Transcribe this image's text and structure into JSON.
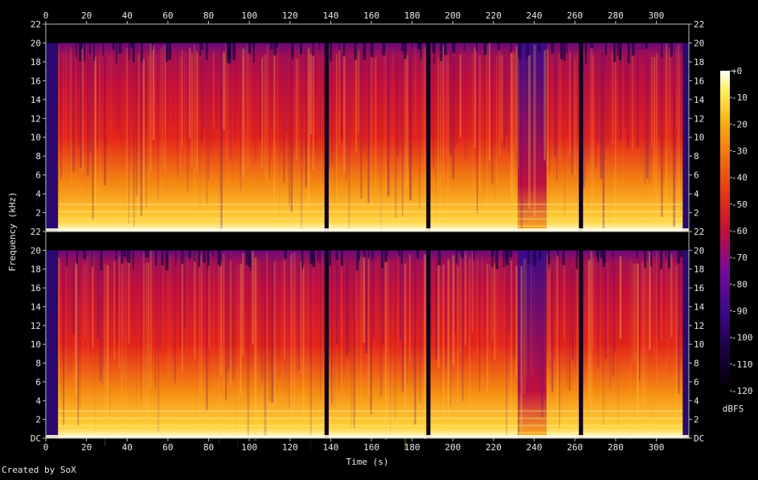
{
  "chart_data": {
    "type": "heatmap",
    "title": "",
    "xlabel": "Time (s)",
    "ylabel": "Frequency (kHz)",
    "xlim": [
      0,
      316
    ],
    "x_ticks": [
      "0",
      "20",
      "40",
      "60",
      "80",
      "100",
      "120",
      "140",
      "160",
      "180",
      "200",
      "220",
      "240",
      "260",
      "280",
      "300"
    ],
    "channels": [
      {
        "y_ticks": [
          "22",
          "20",
          "18",
          "16",
          "14",
          "12",
          "10",
          "8",
          "6",
          "4",
          "2"
        ]
      },
      {
        "y_ticks": [
          "22",
          "20",
          "18",
          "16",
          "14",
          "12",
          "10",
          "8",
          "6",
          "4",
          "2",
          "DC"
        ]
      }
    ],
    "colorbar": {
      "label": "dBFS",
      "range": [
        -120,
        0
      ],
      "ticks": [
        "+0",
        "-10",
        "-20",
        "-30",
        "-40",
        "-50",
        "-60",
        "-70",
        "-80",
        "-90",
        "-100",
        "-110",
        "-120"
      ]
    },
    "segments": [
      {
        "start": 0,
        "end": 6,
        "level": 0.15
      },
      {
        "start": 6,
        "end": 137,
        "level": 0.75
      },
      {
        "start": 137,
        "end": 139,
        "level": 0.05
      },
      {
        "start": 139,
        "end": 187,
        "level": 0.78
      },
      {
        "start": 187,
        "end": 189,
        "level": 0.05
      },
      {
        "start": 189,
        "end": 232,
        "level": 0.72
      },
      {
        "start": 232,
        "end": 246,
        "level": 0.45
      },
      {
        "start": 246,
        "end": 262,
        "level": 0.68
      },
      {
        "start": 262,
        "end": 264,
        "level": 0.08
      },
      {
        "start": 264,
        "end": 313,
        "level": 0.74
      },
      {
        "start": 313,
        "end": 316,
        "level": 0.1
      }
    ],
    "footer": "Created by SoX",
    "palette": [
      "#000000",
      "#1a0040",
      "#3a0a8a",
      "#7a0a9a",
      "#c0103a",
      "#e0301a",
      "#f06a10",
      "#f8b010",
      "#fff060",
      "#ffffff"
    ]
  }
}
